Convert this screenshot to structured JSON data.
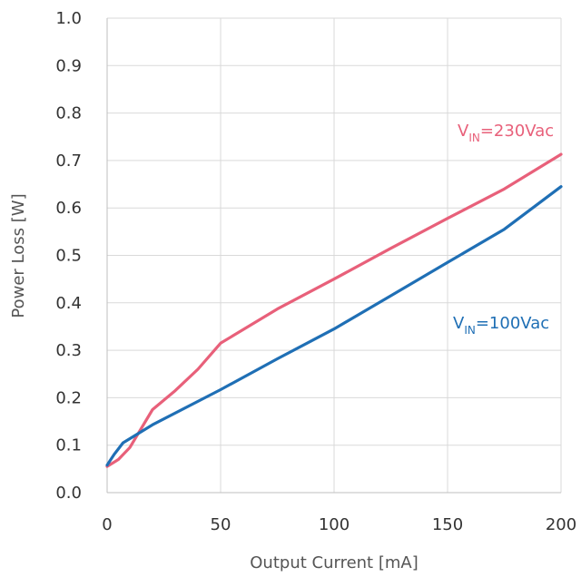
{
  "chart_data": {
    "type": "line",
    "xlabel": "Output Current [mA]",
    "ylabel": "Power Loss [W]",
    "xlim": [
      0,
      200
    ],
    "ylim": [
      0,
      1.0
    ],
    "x_ticks": [
      "0",
      "50",
      "100",
      "150",
      "200"
    ],
    "y_ticks": [
      "0.0",
      "0.1",
      "0.2",
      "0.3",
      "0.4",
      "0.5",
      "0.6",
      "0.7",
      "0.8",
      "0.9",
      "1.0"
    ],
    "grid": true,
    "series": [
      {
        "label_main": "V",
        "label_sub": "IN",
        "label_rest": "=230Vac",
        "color": "#e8607a",
        "points": [
          [
            0,
            0.055
          ],
          [
            5,
            0.07
          ],
          [
            10,
            0.095
          ],
          [
            20,
            0.175
          ],
          [
            30,
            0.215
          ],
          [
            40,
            0.26
          ],
          [
            50,
            0.315
          ],
          [
            75,
            0.387
          ],
          [
            100,
            0.45
          ],
          [
            125,
            0.515
          ],
          [
            150,
            0.578
          ],
          [
            175,
            0.64
          ],
          [
            200,
            0.713
          ]
        ]
      },
      {
        "label_main": "V",
        "label_sub": "IN",
        "label_rest": "=100Vac",
        "color": "#1f6fb5",
        "points": [
          [
            0,
            0.058
          ],
          [
            3,
            0.08
          ],
          [
            7,
            0.105
          ],
          [
            20,
            0.143
          ],
          [
            50,
            0.217
          ],
          [
            75,
            0.282
          ],
          [
            100,
            0.345
          ],
          [
            125,
            0.415
          ],
          [
            150,
            0.485
          ],
          [
            175,
            0.555
          ],
          [
            200,
            0.645
          ]
        ]
      }
    ]
  }
}
